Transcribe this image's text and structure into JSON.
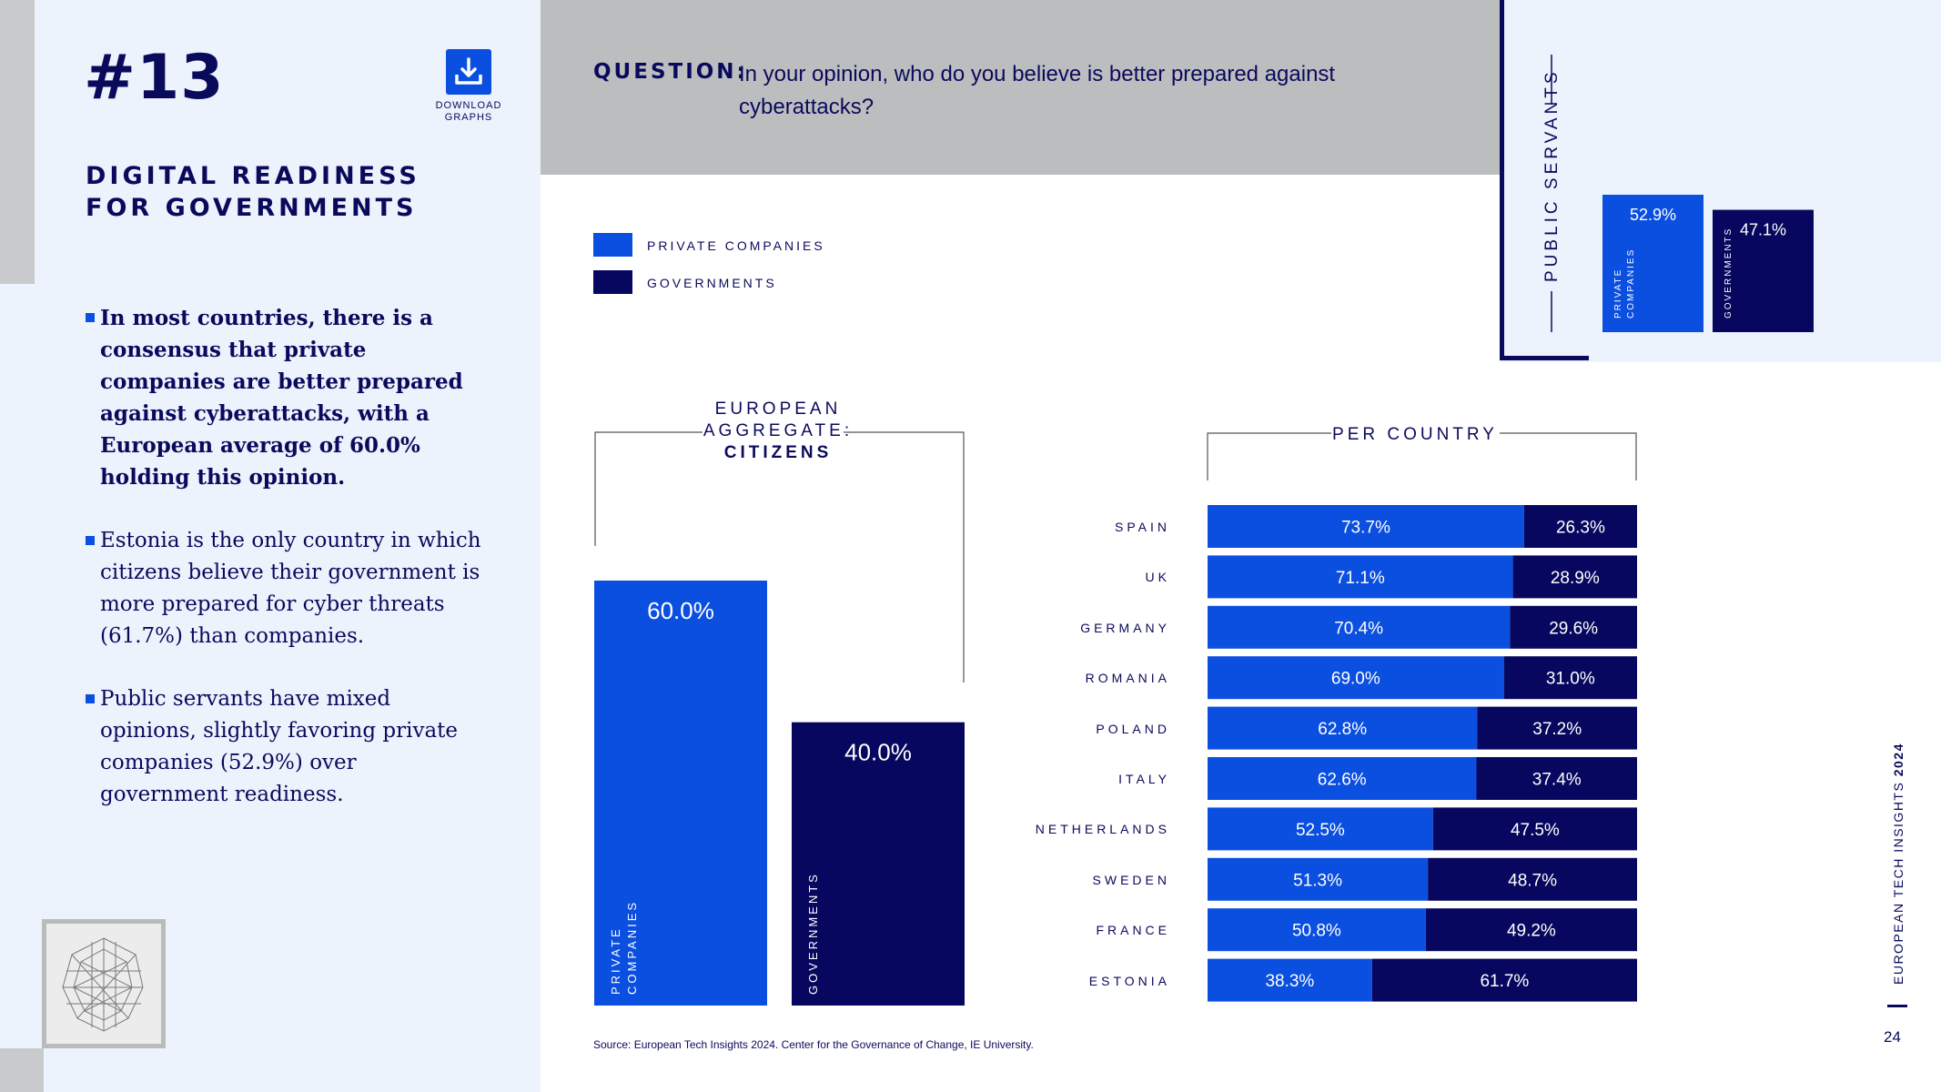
{
  "header": {
    "issue_number": "#13",
    "download_label": "DOWNLOAD GRAPHS",
    "section_title": "DIGITAL READINESS FOR GOVERNMENTS"
  },
  "bullets": [
    "In most countries, there is a consensus that private companies are better prepared against cyberattacks, with a European average of 60.0% holding this opinion.",
    "Estonia is the only country in which citizens believe their government is more prepared for cyber threats (61.7%) than companies.",
    "Public servants have mixed opinions, slightly favoring private companies (52.9%) over government readiness."
  ],
  "question": {
    "label": "QUESTION:",
    "text": "In your opinion, who do you believe is better prepared against cyberattacks?"
  },
  "legend": {
    "private": "PRIVATE COMPANIES",
    "governments": "GOVERNMENTS"
  },
  "colors": {
    "private": "#0b4fe0",
    "governments": "#07075f",
    "navy": "#0a0a5c",
    "panel_bg": "#ecf3fd",
    "band_grey": "#bcbdbf"
  },
  "aggregate_heading": {
    "line1": "EUROPEAN",
    "line2": "AGGREGATE:",
    "line3": "CITIZENS"
  },
  "per_country_heading": "PER COUNTRY",
  "public_servants_label": "PUBLIC SERVANTS",
  "chart_data": [
    {
      "type": "bar",
      "title": "EUROPEAN AGGREGATE: CITIZENS",
      "categories": [
        "PRIVATE COMPANIES",
        "GOVERNMENTS"
      ],
      "bar_labels": [
        "PRIVATE\nCOMPANIES",
        "GOVERNMENTS"
      ],
      "values": [
        60.0,
        40.0
      ],
      "value_labels": [
        "60.0%",
        "40.0%"
      ],
      "ylim": [
        0,
        60
      ]
    },
    {
      "type": "bar",
      "title": "PUBLIC SERVANTS",
      "categories": [
        "PRIVATE COMPANIES",
        "GOVERNMENTS"
      ],
      "bar_labels": [
        "PRIVATE\nCOMPANIES",
        "GOVERNMENTS"
      ],
      "values": [
        52.9,
        47.1
      ],
      "value_labels": [
        "52.9%",
        "47.1%"
      ],
      "ylim": [
        0,
        52.9
      ]
    },
    {
      "type": "bar",
      "stacked": true,
      "orientation": "horizontal",
      "title": "PER COUNTRY",
      "categories": [
        "SPAIN",
        "UK",
        "GERMANY",
        "ROMANIA",
        "POLAND",
        "ITALY",
        "NETHERLANDS",
        "SWEDEN",
        "FRANCE",
        "ESTONIA"
      ],
      "series": [
        {
          "name": "PRIVATE COMPANIES",
          "values": [
            73.7,
            71.1,
            70.4,
            69.0,
            62.8,
            62.6,
            52.5,
            51.3,
            50.8,
            38.3
          ],
          "labels": [
            "73.7%",
            "71.1%",
            "70.4%",
            "69.0%",
            "62.8%",
            "62.6%",
            "52.5%",
            "51.3%",
            "50.8%",
            "38.3%"
          ]
        },
        {
          "name": "GOVERNMENTS",
          "values": [
            26.3,
            28.9,
            29.6,
            31.0,
            37.2,
            37.4,
            47.5,
            48.7,
            49.2,
            61.7
          ],
          "labels": [
            "26.3%",
            "28.9%",
            "29.6%",
            "31.0%",
            "37.2%",
            "37.4%",
            "47.5%",
            "48.7%",
            "49.2%",
            "61.7%"
          ]
        }
      ],
      "xlim": [
        0,
        100
      ]
    }
  ],
  "source": "Source: European Tech Insights 2024. Center for the Governance of Change, IE University.",
  "footer": {
    "side_caption_a": "EUROPEAN TECH INSIGHTS ",
    "side_caption_b": "2024",
    "page_number": "24"
  }
}
